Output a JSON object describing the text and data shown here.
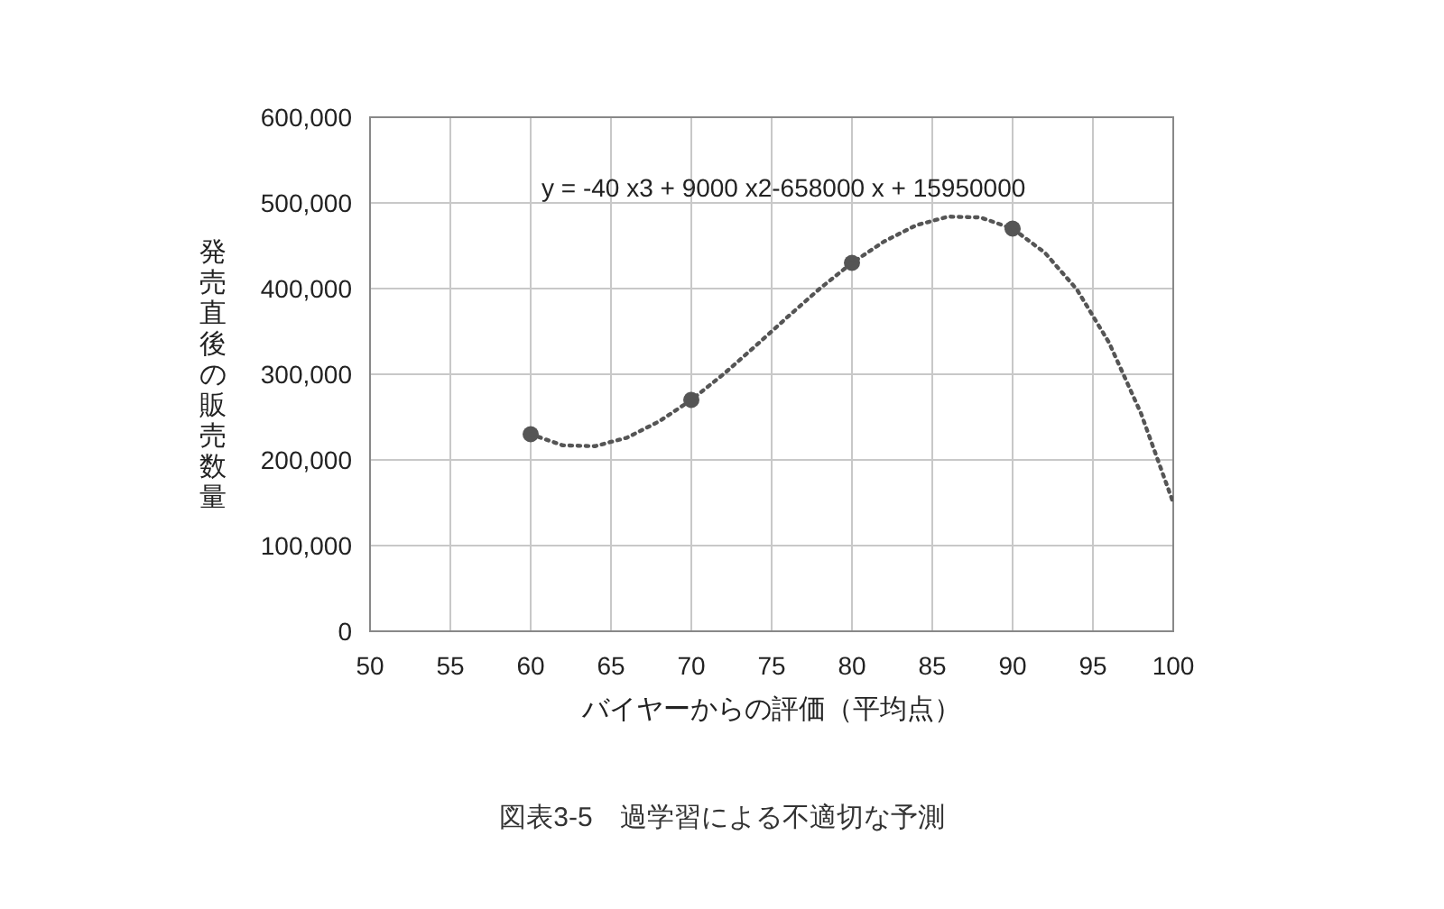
{
  "chart_data": {
    "type": "scatter",
    "xlabel": "バイヤーからの評価（平均点）",
    "ylabel": "発売直後の販売数量",
    "xlim": [
      50,
      100
    ],
    "xticks": [
      50,
      55,
      60,
      65,
      70,
      75,
      80,
      85,
      90,
      95,
      100
    ],
    "ylim": [
      0,
      600000
    ],
    "yticks": [
      {
        "value": 0,
        "label": "0"
      },
      {
        "value": 100000,
        "label": "100,000"
      },
      {
        "value": 200000,
        "label": "200,000"
      },
      {
        "value": 300000,
        "label": "300,000"
      },
      {
        "value": 400000,
        "label": "400,000"
      },
      {
        "value": 500000,
        "label": "500,000"
      },
      {
        "value": 600000,
        "label": "600,000"
      }
    ],
    "grid": true,
    "marker": "circle",
    "series": [
      {
        "color": "#555555",
        "x": [
          60,
          70,
          80,
          90
        ],
        "values": [
          230000,
          270000,
          430000,
          470000
        ]
      },
      {
        "type": "line",
        "line_style": "dotted",
        "marker": "none",
        "color": "#555555",
        "x": [
          60,
          62,
          64,
          66,
          68,
          70,
          72,
          74,
          76,
          78,
          80,
          82,
          84,
          86,
          88,
          90,
          92,
          94,
          96,
          98,
          100
        ],
        "values": [
          230000,
          217000,
          216000,
          226000,
          245000,
          270000,
          300000,
          333000,
          367000,
          400000,
          430000,
          455000,
          474000,
          484000,
          483000,
          470000,
          442000,
          399000,
          337000,
          254000,
          150000
        ]
      }
    ],
    "annotations": [
      "y = -40 x3 + 9000 x2-658000 x + 15950000",
      "図表3-5　過学習による不適切な予測"
    ]
  }
}
